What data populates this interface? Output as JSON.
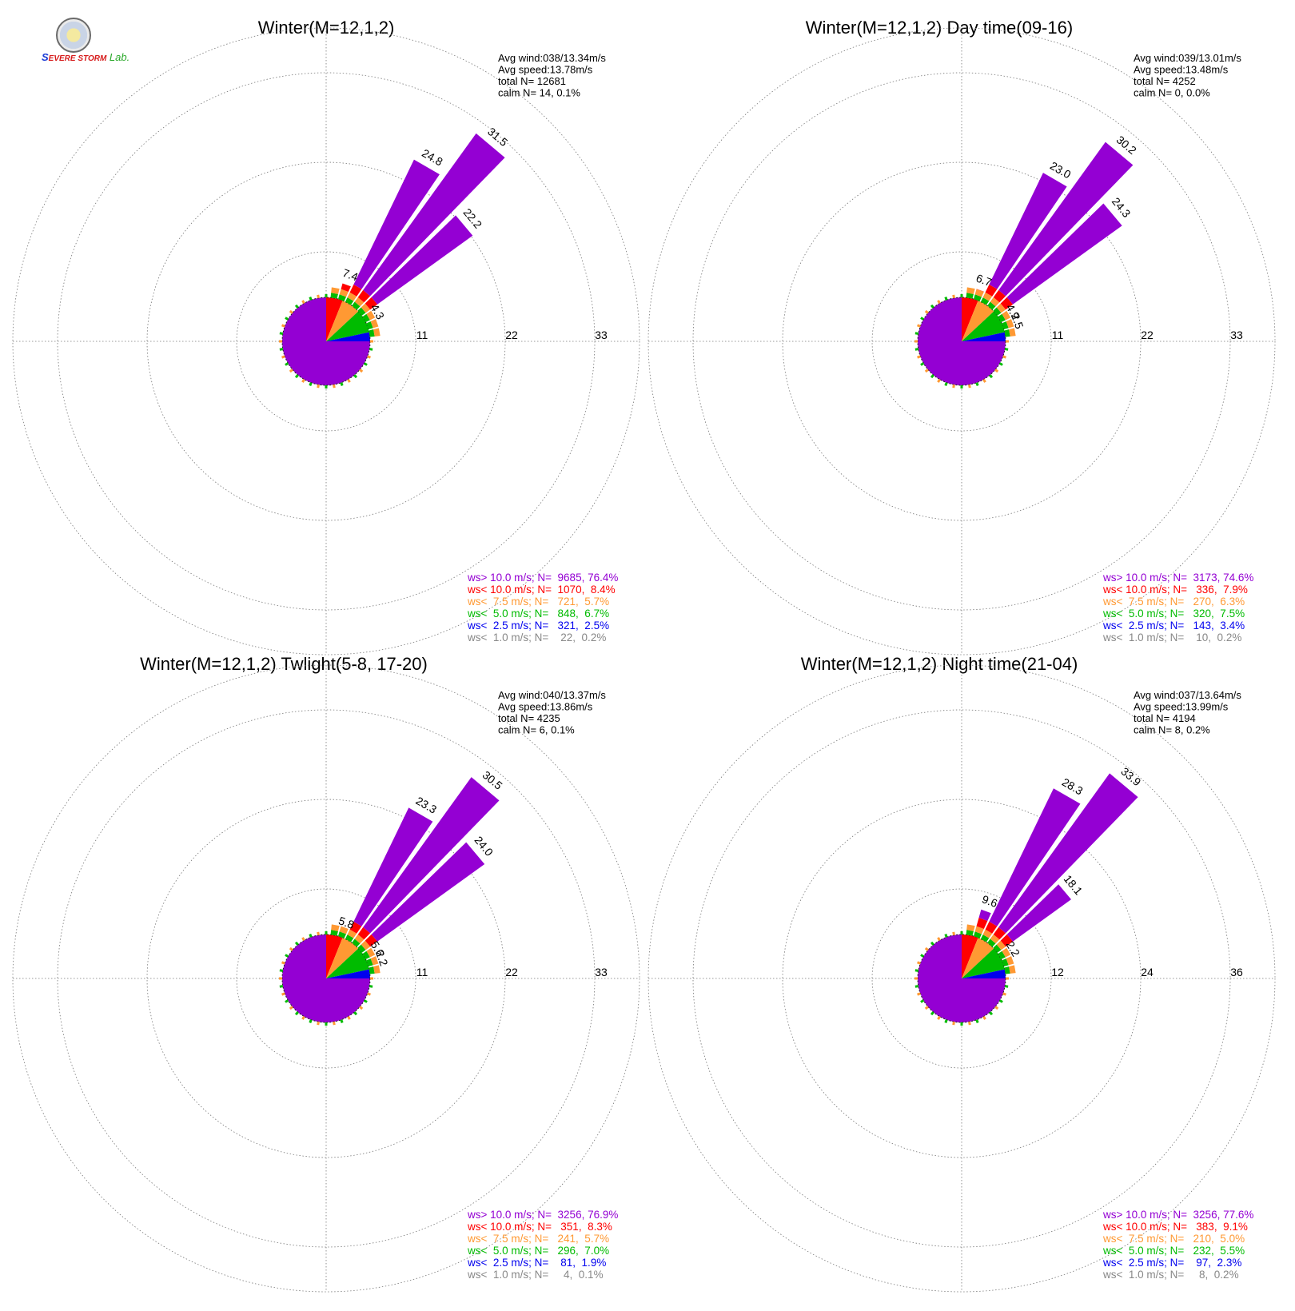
{
  "logo": {
    "text_a": "S",
    "text_b": "EVERE STORM",
    "text_c": "Lab."
  },
  "colors": {
    "gt10": "#9400d3",
    "lt10": "#ff0000",
    "lt7_5": "#ff9933",
    "lt5": "#00bb00",
    "lt2_5": "#0000ee",
    "lt1": "#888888"
  },
  "chart_data": [
    {
      "type": "polar-bar",
      "title": "Winter(M=12,1,2)",
      "ring_labels": [
        "11",
        "22",
        "33"
      ],
      "rmax": 33,
      "sectors_deg": [
        10,
        20,
        30,
        40,
        50,
        60,
        70,
        80
      ],
      "sector_values": [
        1.1,
        7.4,
        24.8,
        31.5,
        22.2,
        4.3,
        1.5,
        0.8
      ],
      "value_labels": [
        {
          "dir": 20,
          "text": "7.4"
        },
        {
          "dir": 30,
          "text": "24.8"
        },
        {
          "dir": 40,
          "text": "31.5"
        },
        {
          "dir": 50,
          "text": "22.2"
        },
        {
          "dir": 60,
          "text": "4.3"
        }
      ],
      "stats": [
        "Avg wind:038/13.34m/s",
        "Avg speed:13.78m/s",
        "total N=       12681",
        "calm N=      14,   0.1%"
      ],
      "legend": [
        {
          "key": "gt10",
          "text": "ws> 10.0 m/s; N=  9685, 76.4%"
        },
        {
          "key": "lt10",
          "text": "ws< 10.0 m/s; N=  1070,  8.4%"
        },
        {
          "key": "lt7_5",
          "text": "ws<  7.5 m/s; N=   721,  5.7%"
        },
        {
          "key": "lt5",
          "text": "ws<  5.0 m/s; N=   848,  6.7%"
        },
        {
          "key": "lt2_5",
          "text": "ws<  2.5 m/s; N=   321,  2.5%"
        },
        {
          "key": "lt1",
          "text": "ws<  1.0 m/s; N=    22,  0.2%"
        }
      ]
    },
    {
      "type": "polar-bar",
      "title": "Winter(M=12,1,2) Day time(09-16)",
      "ring_labels": [
        "11",
        "22",
        "33"
      ],
      "rmax": 33,
      "sectors_deg": [
        10,
        20,
        30,
        40,
        50,
        60,
        70,
        80
      ],
      "sector_values": [
        1.0,
        6.7,
        23.0,
        30.2,
        24.3,
        4.9,
        2.5,
        1.0
      ],
      "value_labels": [
        {
          "dir": 20,
          "text": "6.7"
        },
        {
          "dir": 30,
          "text": "23.0"
        },
        {
          "dir": 40,
          "text": "30.2"
        },
        {
          "dir": 50,
          "text": "24.3"
        },
        {
          "dir": 60,
          "text": "4.9"
        },
        {
          "dir": 70,
          "text": "2.5"
        }
      ],
      "stats": [
        "Avg wind:039/13.01m/s",
        "Avg speed:13.48m/s",
        "total N=         4252",
        "calm N=        0,   0.0%"
      ],
      "legend": [
        {
          "key": "gt10",
          "text": "ws> 10.0 m/s; N=  3173, 74.6%"
        },
        {
          "key": "lt10",
          "text": "ws< 10.0 m/s; N=   336,  7.9%"
        },
        {
          "key": "lt7_5",
          "text": "ws<  7.5 m/s; N=   270,  6.3%"
        },
        {
          "key": "lt5",
          "text": "ws<  5.0 m/s; N=   320,  7.5%"
        },
        {
          "key": "lt2_5",
          "text": "ws<  2.5 m/s; N=   143,  3.4%"
        },
        {
          "key": "lt1",
          "text": "ws<  1.0 m/s; N=    10,  0.2%"
        }
      ]
    },
    {
      "type": "polar-bar",
      "title": "Winter(M=12,1,2) Twlight(5-8, 17-20)",
      "ring_labels": [
        "11",
        "22",
        "33"
      ],
      "rmax": 33,
      "sectors_deg": [
        10,
        20,
        30,
        40,
        50,
        60,
        70,
        80
      ],
      "sector_values": [
        1.0,
        5.8,
        23.3,
        30.5,
        24.0,
        5.6,
        2.2,
        0.9
      ],
      "value_labels": [
        {
          "dir": 20,
          "text": "5.8"
        },
        {
          "dir": 30,
          "text": "23.3"
        },
        {
          "dir": 40,
          "text": "30.5"
        },
        {
          "dir": 50,
          "text": "24.0"
        },
        {
          "dir": 60,
          "text": "5.6"
        },
        {
          "dir": 70,
          "text": "2.2"
        }
      ],
      "stats": [
        "Avg wind:040/13.37m/s",
        "Avg speed:13.86m/s",
        "total N=         4235",
        "calm N=        6,   0.1%"
      ],
      "legend": [
        {
          "key": "gt10",
          "text": "ws> 10.0 m/s; N=  3256, 76.9%"
        },
        {
          "key": "lt10",
          "text": "ws< 10.0 m/s; N=   351,  8.3%"
        },
        {
          "key": "lt7_5",
          "text": "ws<  7.5 m/s; N=   241,  5.7%"
        },
        {
          "key": "lt5",
          "text": "ws<  5.0 m/s; N=   296,  7.0%"
        },
        {
          "key": "lt2_5",
          "text": "ws<  2.5 m/s; N=    81,  1.9%"
        },
        {
          "key": "lt1",
          "text": "ws<  1.0 m/s; N=     4,  0.1%"
        }
      ]
    },
    {
      "type": "polar-bar",
      "title": "Winter(M=12,1,2) Night time(21-04)",
      "ring_labels": [
        "12",
        "24",
        "36"
      ],
      "rmax": 36,
      "sectors_deg": [
        10,
        20,
        30,
        40,
        50,
        60,
        70,
        80
      ],
      "sector_values": [
        1.0,
        9.6,
        28.3,
        33.9,
        18.1,
        2.2,
        1.2,
        0.8
      ],
      "value_labels": [
        {
          "dir": 20,
          "text": "9.6"
        },
        {
          "dir": 30,
          "text": "28.3"
        },
        {
          "dir": 40,
          "text": "33.9"
        },
        {
          "dir": 50,
          "text": "18.1"
        },
        {
          "dir": 60,
          "text": "2.2"
        }
      ],
      "stats": [
        "Avg wind:037/13.64m/s",
        "Avg speed:13.99m/s",
        "total N=         4194",
        "calm N=        8,   0.2%"
      ],
      "legend": [
        {
          "key": "gt10",
          "text": "ws> 10.0 m/s; N=  3256, 77.6%"
        },
        {
          "key": "lt10",
          "text": "ws< 10.0 m/s; N=   383,  9.1%"
        },
        {
          "key": "lt7_5",
          "text": "ws<  7.5 m/s; N=   210,  5.0%"
        },
        {
          "key": "lt5",
          "text": "ws<  5.0 m/s; N=   232,  5.5%"
        },
        {
          "key": "lt2_5",
          "text": "ws<  2.5 m/s; N=    97,  2.3%"
        },
        {
          "key": "lt1",
          "text": "ws<  1.0 m/s; N=     8,  0.2%"
        }
      ]
    }
  ]
}
